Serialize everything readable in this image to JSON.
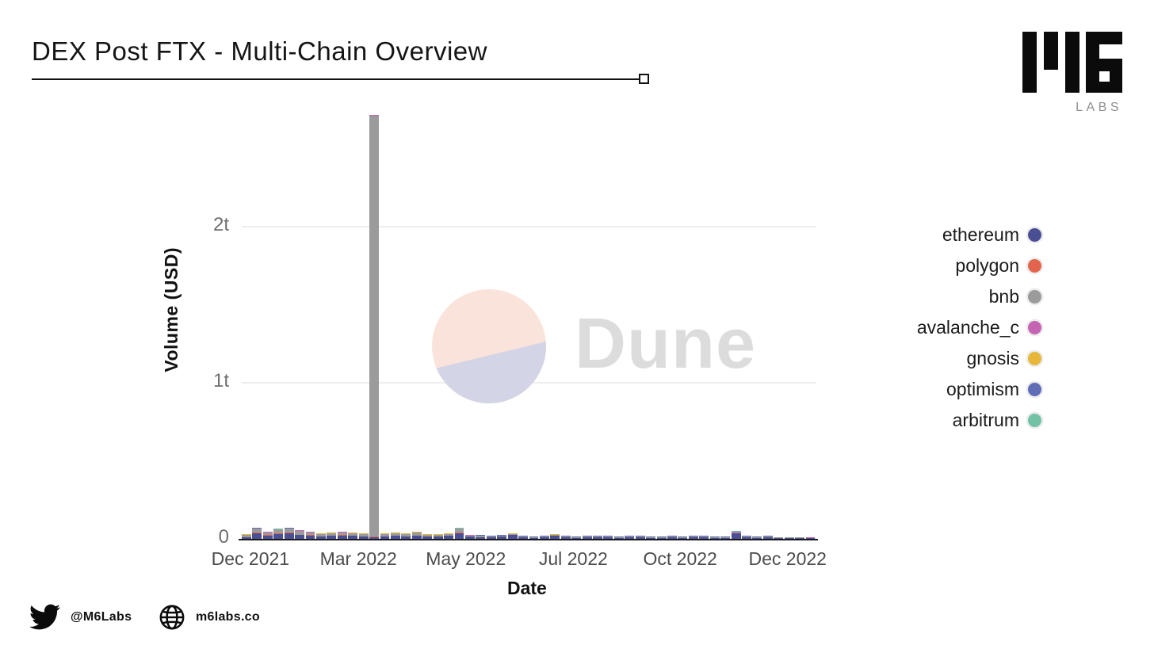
{
  "header": {
    "title": "DEX Post FTX - Multi-Chain Overview"
  },
  "branding": {
    "logo_text": "M6",
    "logo_sub": "LABS"
  },
  "watermark": {
    "text": "Dune"
  },
  "footer": {
    "twitter_handle": "@M6Labs",
    "website": "m6labs.co"
  },
  "legend": [
    {
      "label": "ethereum",
      "color": "#4a4f93"
    },
    {
      "label": "polygon",
      "color": "#e3644d"
    },
    {
      "label": "bnb",
      "color": "#9b9b9b"
    },
    {
      "label": "avalanche_c",
      "color": "#c564b3"
    },
    {
      "label": "gnosis",
      "color": "#e7b73c"
    },
    {
      "label": "optimism",
      "color": "#5f6cb6"
    },
    {
      "label": "arbitrum",
      "color": "#73c2a6"
    }
  ],
  "chart_data": {
    "type": "bar",
    "stacked": true,
    "title": "",
    "xlabel": "Date",
    "ylabel": "Volume (USD)",
    "values_unit": "billions USD (1t tick = 1000)",
    "ylim": [
      0,
      2750
    ],
    "grid": "horizontal only",
    "legend_position": "right",
    "y_ticks": [
      "0",
      "1t",
      "2t"
    ],
    "x_tick_labels": [
      "Dec 2021",
      "Mar 2022",
      "May 2022",
      "Jul 2022",
      "Oct 2022",
      "Dec 2022"
    ],
    "n_bars": 54,
    "x_description": "weekly bars from Dec 2021 through Dec 2022; huge bnb outlier (~2.7t) just after Mar 2022 tick; small ethereum spike (FTX collapse) in Nov 2022",
    "series": [
      {
        "name": "ethereum",
        "values": [
          10,
          36,
          20,
          30,
          36,
          25,
          20,
          15,
          20,
          20,
          20,
          15,
          10,
          15,
          20,
          15,
          20,
          15,
          15,
          20,
          35,
          15,
          10,
          10,
          15,
          25,
          10,
          5,
          10,
          20,
          10,
          5,
          10,
          10,
          10,
          5,
          10,
          10,
          5,
          5,
          10,
          5,
          10,
          10,
          5,
          5,
          36,
          10,
          5,
          10,
          5,
          5,
          5,
          4
        ]
      },
      {
        "name": "polygon",
        "values": [
          2,
          5,
          3,
          4,
          4,
          3,
          3,
          2,
          2,
          3,
          2,
          2,
          3,
          2,
          2,
          2,
          2,
          2,
          2,
          2,
          4,
          2,
          1,
          1,
          1,
          2,
          1,
          1,
          1,
          2,
          1,
          1,
          1,
          1,
          1,
          1,
          1,
          1,
          1,
          1,
          1,
          1,
          1,
          1,
          1,
          1,
          2,
          1,
          1,
          1,
          1,
          1,
          1,
          1
        ]
      },
      {
        "name": "bnb",
        "values": [
          15,
          25,
          20,
          25,
          25,
          25,
          20,
          15,
          15,
          20,
          15,
          15,
          2700,
          15,
          15,
          15,
          20,
          10,
          10,
          10,
          25,
          5,
          10,
          5,
          5,
          5,
          5,
          5,
          5,
          5,
          5,
          5,
          5,
          5,
          5,
          5,
          5,
          5,
          5,
          5,
          5,
          5,
          5,
          5,
          5,
          5,
          5,
          5,
          5,
          5,
          3,
          3,
          2,
          2
        ]
      },
      {
        "name": "avalanche_c",
        "values": [
          1,
          2,
          1,
          2,
          2,
          1,
          1,
          1,
          1,
          1,
          1,
          1,
          1,
          1,
          1,
          1,
          1,
          1,
          1,
          1,
          2,
          1,
          1,
          1,
          1,
          1,
          1,
          1,
          1,
          1,
          1,
          1,
          1,
          1,
          1,
          1,
          1,
          1,
          1,
          1,
          1,
          1,
          1,
          1,
          1,
          1,
          1,
          1,
          1,
          1,
          1,
          1,
          1,
          1
        ]
      },
      {
        "name": "gnosis",
        "values": [
          0.5,
          0.5,
          0.5,
          0.5,
          0.5,
          0.5,
          0.5,
          0.5,
          0.5,
          0.5,
          0.5,
          0.5,
          0.5,
          0.5,
          0.5,
          0.5,
          0.5,
          0.5,
          0.5,
          0.5,
          0.5,
          0.5,
          0.5,
          0.5,
          0.5,
          0.5,
          0.5,
          0.5,
          0.5,
          0.5,
          0.5,
          0.5,
          0.5,
          0.5,
          0.5,
          0.5,
          0.5,
          0.5,
          0.5,
          0.5,
          0.5,
          0.5,
          0.5,
          0.5,
          0.5,
          0.5,
          0.5,
          0.5,
          0.5,
          0.5,
          0.5,
          0.5,
          0.5,
          0.5
        ]
      },
      {
        "name": "optimism",
        "values": [
          1,
          2,
          1,
          2,
          2,
          2,
          1,
          1,
          1,
          1,
          1,
          1,
          1,
          1,
          1,
          1,
          1,
          1,
          1,
          1,
          2,
          1,
          1,
          1,
          1,
          1,
          1,
          1,
          1,
          1,
          1,
          1,
          1,
          1,
          1,
          1,
          1,
          1,
          1,
          1,
          1,
          1,
          1,
          1,
          1,
          1,
          2,
          1,
          1,
          1,
          1,
          1,
          1,
          1
        ]
      },
      {
        "name": "arbitrum",
        "values": [
          1,
          2,
          1,
          2,
          2,
          2,
          1,
          1,
          1,
          1,
          1,
          1,
          1,
          1,
          1,
          1,
          1,
          1,
          1,
          1,
          2,
          1,
          1,
          1,
          1,
          2,
          1,
          1,
          1,
          2,
          1,
          1,
          1,
          1,
          1,
          1,
          1,
          1,
          1,
          1,
          1,
          1,
          1,
          1,
          1,
          1,
          3,
          2,
          1,
          2,
          1,
          1,
          1,
          1
        ]
      }
    ]
  }
}
